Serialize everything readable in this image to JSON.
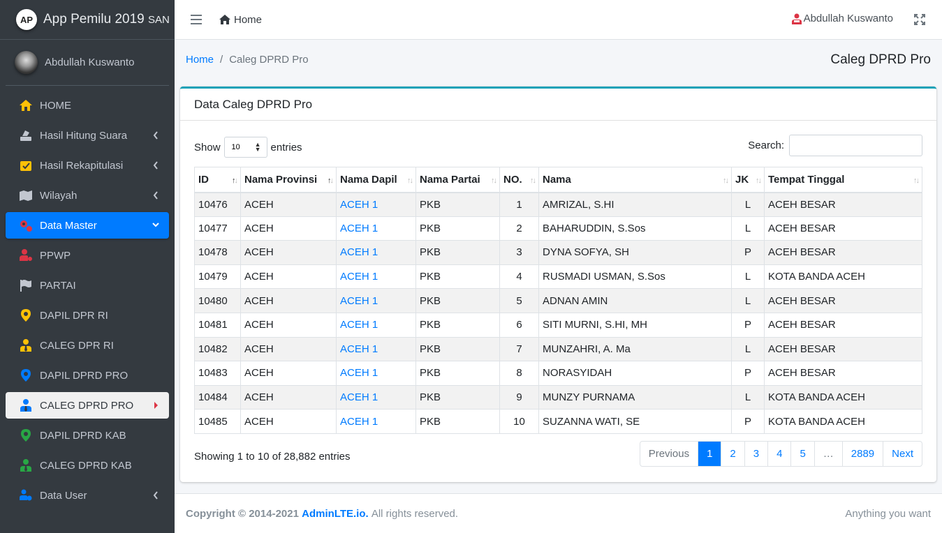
{
  "brand": {
    "logo": "AP",
    "title": "App Pemilu 2019",
    "suffix": "SAN"
  },
  "user": {
    "name": "Abdullah Kuswanto"
  },
  "sidebar": {
    "items": [
      {
        "label": "HOME",
        "icon": "home-icon",
        "color": "#ffc107"
      },
      {
        "label": "Hasil Hitung Suara",
        "icon": "vote-icon",
        "color": "#c2c7d0",
        "chevron": true
      },
      {
        "label": "Hasil Rekapitulasi",
        "icon": "check-vote-icon",
        "color": "#ffc107",
        "chevron": true
      },
      {
        "label": "Wilayah",
        "icon": "map-icon",
        "color": "#c2c7d0",
        "chevron": true
      },
      {
        "label": "Data Master",
        "icon": "cogs-icon",
        "color": "#dc3545",
        "chevron": true,
        "state": "active"
      },
      {
        "label": "PPWP",
        "icon": "user-gear-icon",
        "color": "#dc3545"
      },
      {
        "label": "PARTAI",
        "icon": "flag-icon",
        "color": "#c2c7d0"
      },
      {
        "label": "DAPIL DPR RI",
        "icon": "map-marker-icon",
        "color": "#ffc107"
      },
      {
        "label": "CALEG DPR RI",
        "icon": "user-tie-icon",
        "color": "#ffc107"
      },
      {
        "label": "DAPIL DPRD PRO",
        "icon": "map-marker-icon",
        "color": "#007bff"
      },
      {
        "label": "CALEG DPRD PRO",
        "icon": "user-tie-icon",
        "color": "#007bff",
        "state": "current"
      },
      {
        "label": "DAPIL DPRD KAB",
        "icon": "map-marker-icon",
        "color": "#28a745"
      },
      {
        "label": "CALEG DPRD KAB",
        "icon": "user-tie-icon",
        "color": "#28a745"
      },
      {
        "label": "Data User",
        "icon": "users-gear-icon",
        "color": "#007bff",
        "chevron": true
      }
    ]
  },
  "topbar": {
    "home_label": "Home",
    "user_label": "Abdullah Kuswanto"
  },
  "breadcrumb": {
    "home": "Home",
    "current": "Caleg DPRD Pro"
  },
  "page_title": "Caleg DPRD Pro",
  "card": {
    "title": "Data Caleg DPRD Pro"
  },
  "table_controls": {
    "show": "Show",
    "entries_value": "10",
    "entries": "entries",
    "search_label": "Search:"
  },
  "table": {
    "columns": [
      "ID",
      "Nama Provinsi",
      "Nama Dapil",
      "Nama Partai",
      "NO.",
      "Nama",
      "JK",
      "Tempat Tinggal"
    ],
    "rows": [
      [
        "10476",
        "ACEH",
        "ACEH 1",
        "PKB",
        "1",
        "AMRIZAL, S.HI",
        "L",
        "ACEH BESAR"
      ],
      [
        "10477",
        "ACEH",
        "ACEH 1",
        "PKB",
        "2",
        "BAHARUDDIN, S.Sos",
        "L",
        "ACEH BESAR"
      ],
      [
        "10478",
        "ACEH",
        "ACEH 1",
        "PKB",
        "3",
        "DYNA SOFYA, SH",
        "P",
        "ACEH BESAR"
      ],
      [
        "10479",
        "ACEH",
        "ACEH 1",
        "PKB",
        "4",
        "RUSMADI USMAN, S.Sos",
        "L",
        "KOTA BANDA ACEH"
      ],
      [
        "10480",
        "ACEH",
        "ACEH 1",
        "PKB",
        "5",
        "ADNAN AMIN",
        "L",
        "ACEH BESAR"
      ],
      [
        "10481",
        "ACEH",
        "ACEH 1",
        "PKB",
        "6",
        "SITI MURNI, S.HI, MH",
        "P",
        "ACEH BESAR"
      ],
      [
        "10482",
        "ACEH",
        "ACEH 1",
        "PKB",
        "7",
        "MUNZAHRI, A. Ma",
        "L",
        "ACEH BESAR"
      ],
      [
        "10483",
        "ACEH",
        "ACEH 1",
        "PKB",
        "8",
        "NORASYIDAH",
        "P",
        "ACEH BESAR"
      ],
      [
        "10484",
        "ACEH",
        "ACEH 1",
        "PKB",
        "9",
        "MUNZY PURNAMA",
        "L",
        "KOTA BANDA ACEH"
      ],
      [
        "10485",
        "ACEH",
        "ACEH 1",
        "PKB",
        "10",
        "SUZANNA WATI, SE",
        "P",
        "KOTA BANDA ACEH"
      ]
    ]
  },
  "info": "Showing 1 to 10 of 28,882 entries",
  "pagination": {
    "previous": "Previous",
    "pages": [
      "1",
      "2",
      "3",
      "4",
      "5",
      "…",
      "2889"
    ],
    "active": "1",
    "next": "Next"
  },
  "footer": {
    "copyright": "Copyright © 2014-2021",
    "link": "AdminLTE.io.",
    "rights": "All rights reserved.",
    "right": "Anything you want"
  }
}
